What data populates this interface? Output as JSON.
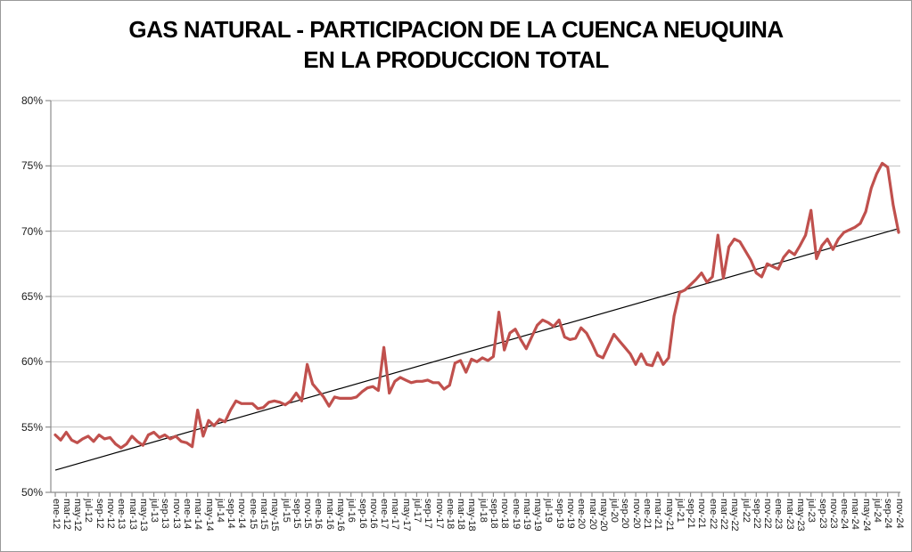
{
  "title": {
    "line1": "GAS NATURAL - PARTICIPACION DE LA CUENCA NEUQUINA",
    "line2": "EN LA PRODUCCION TOTAL"
  },
  "chart_data": {
    "type": "line",
    "title": "GAS NATURAL - PARTICIPACION DE LA CUENCA NEUQUINA EN LA PRODUCCION TOTAL",
    "xlabel": "",
    "ylabel": "",
    "ylim": [
      50,
      80
    ],
    "y_unit": "%",
    "y_tick_step": 5,
    "y_tick_labels_top_to_bottom": [
      "80%",
      "75%",
      "70%",
      "65%",
      "60%",
      "55%",
      "50%"
    ],
    "grid": "horizontal-only",
    "legend": "none",
    "x_tick_labels": [
      "ene-12",
      "mar-12",
      "may-12",
      "jul-12",
      "sep-12",
      "nov-12",
      "ene-13",
      "mar-13",
      "may-13",
      "jul-13",
      "sep-13",
      "nov-13",
      "ene-14",
      "mar-14",
      "may-14",
      "jul-14",
      "sep-14",
      "nov-14",
      "ene-15",
      "mar-15",
      "may-15",
      "jul-15",
      "sep-15",
      "nov-15",
      "ene-16",
      "mar-16",
      "may-16",
      "jul-16",
      "sep-16",
      "nov-16",
      "ene-17",
      "mar-17",
      "may-17",
      "jul-17",
      "sep-17",
      "nov-17",
      "ene-18",
      "mar-18",
      "may-18",
      "jul-18",
      "sep-18",
      "nov-18",
      "ene-19",
      "mar-19",
      "may-19",
      "jul-19",
      "sep-19",
      "nov-19",
      "ene-20",
      "mar-20",
      "may-20",
      "jul-20",
      "sep-20",
      "nov-20",
      "ene-21",
      "mar-21",
      "may-21",
      "jul-21",
      "sep-21",
      "nov-21",
      "ene-22",
      "mar-22",
      "may-22",
      "jul-22",
      "sep-22",
      "nov-22",
      "ene-23",
      "mar-23",
      "may-23",
      "jul-23",
      "sep-23",
      "nov-23",
      "ene-24",
      "mar-24",
      "may-24",
      "jul-24",
      "sep-24",
      "nov-24"
    ],
    "x_series_note": "monthly points from ene-12 to nov-24; axis labels shown every 2 months",
    "series": [
      {
        "name": "participacion-cuenca-neuquina",
        "type": "line",
        "color": "#C0504D",
        "stroke_width": 3.2,
        "monthly_values_pct": [
          54.4,
          54.0,
          54.6,
          54.0,
          53.8,
          54.1,
          54.3,
          53.9,
          54.4,
          54.1,
          54.2,
          53.7,
          53.4,
          53.7,
          54.3,
          53.9,
          53.6,
          54.4,
          54.6,
          54.2,
          54.4,
          54.1,
          54.3,
          53.9,
          53.8,
          53.5,
          56.3,
          54.3,
          55.5,
          55.1,
          55.6,
          55.4,
          56.3,
          57.0,
          56.8,
          56.8,
          56.8,
          56.4,
          56.5,
          56.9,
          57.0,
          56.9,
          56.7,
          57.0,
          57.6,
          57.0,
          59.8,
          58.3,
          57.8,
          57.3,
          56.6,
          57.3,
          57.2,
          57.2,
          57.2,
          57.3,
          57.7,
          58.0,
          58.1,
          57.8,
          61.1,
          57.6,
          58.5,
          58.8,
          58.6,
          58.4,
          58.5,
          58.5,
          58.6,
          58.4,
          58.4,
          57.9,
          58.2,
          59.9,
          60.1,
          59.2,
          60.2,
          60.0,
          60.3,
          60.1,
          60.4,
          63.8,
          60.9,
          62.2,
          62.5,
          61.7,
          61.0,
          61.9,
          62.8,
          63.2,
          63.0,
          62.7,
          63.2,
          61.9,
          61.7,
          61.8,
          62.6,
          62.2,
          61.4,
          60.5,
          60.3,
          61.2,
          62.1,
          61.6,
          61.1,
          60.6,
          59.8,
          60.6,
          59.8,
          59.7,
          60.7,
          59.8,
          60.3,
          63.5,
          65.3,
          65.5,
          65.9,
          66.3,
          66.8,
          66.1,
          66.5,
          69.7,
          66.4,
          68.8,
          69.4,
          69.2,
          68.5,
          67.8,
          66.8,
          66.5,
          67.5,
          67.3,
          67.1,
          68.0,
          68.5,
          68.2,
          68.9,
          69.7,
          71.6,
          67.9,
          68.9,
          69.4,
          68.6,
          69.4,
          69.9,
          70.1,
          70.3,
          70.6,
          71.5,
          73.3,
          74.4,
          75.2,
          74.9,
          72.0,
          69.9
        ]
      },
      {
        "name": "tendencia-lineal",
        "type": "trendline",
        "color": "#000000",
        "stroke_width": 1.2,
        "start_value_pct": 51.7,
        "end_value_pct": 70.2
      }
    ],
    "colors": {
      "series_red": "#C0504D",
      "trend_black": "#000000",
      "gridline_gray": "#bfbfbf",
      "axis_gray": "#8c8c8c",
      "frame_border_gray": "#9a9a9a",
      "text_black": "#1a1a1a"
    }
  }
}
